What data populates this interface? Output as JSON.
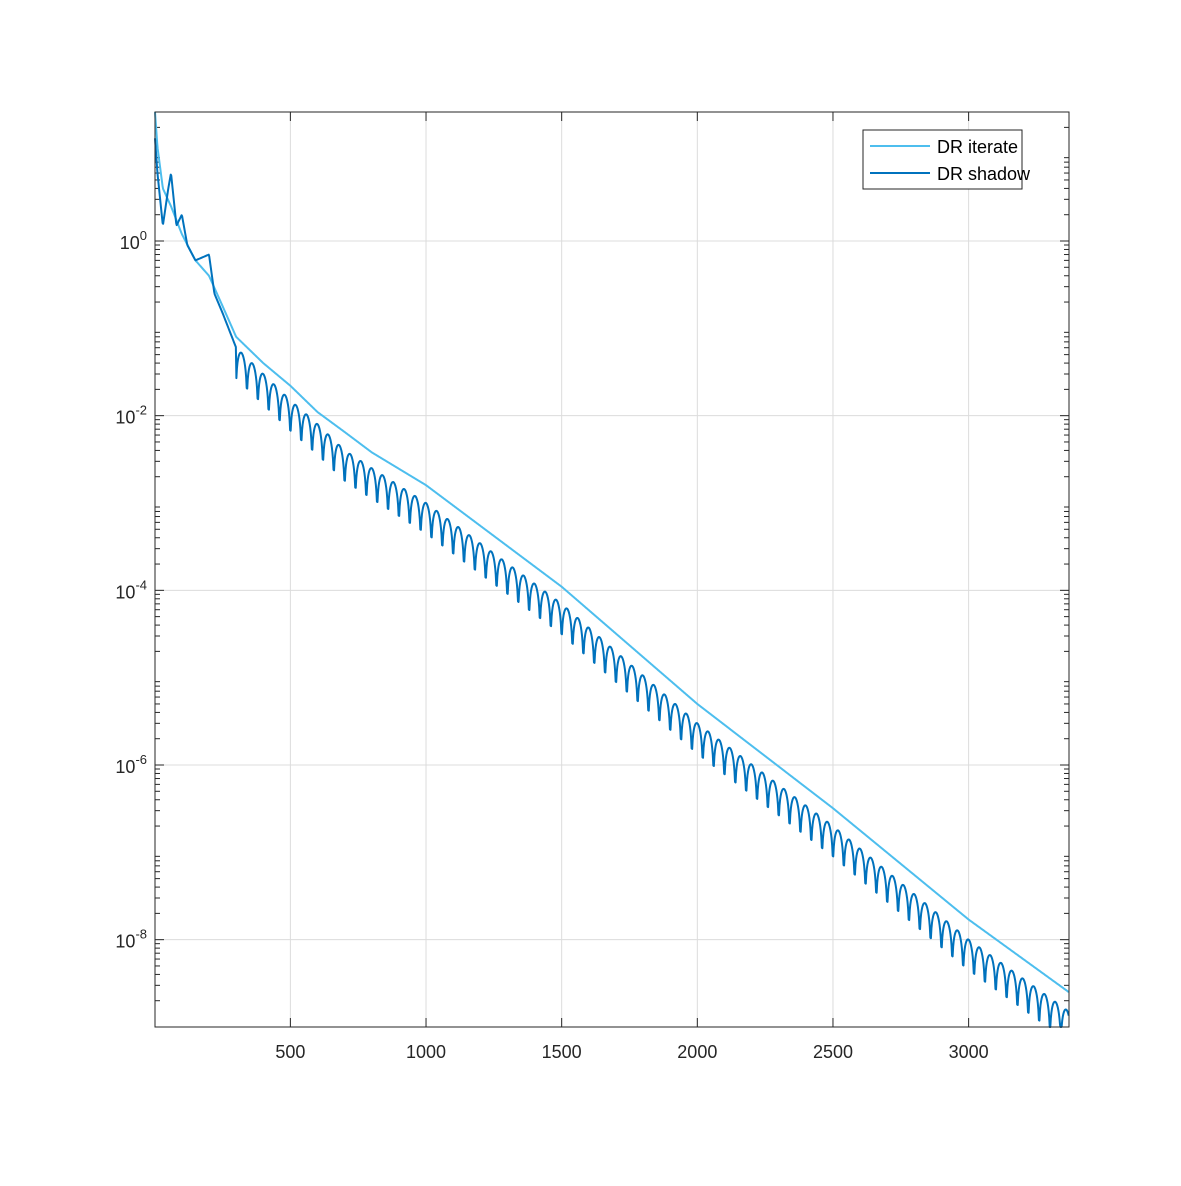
{
  "chart_data": {
    "type": "line",
    "title": "",
    "xlabel": "",
    "ylabel": "",
    "x_scale": "linear",
    "y_scale": "log",
    "xlim": [
      1,
      3370
    ],
    "ylim": [
      1e-09,
      30
    ],
    "grid": true,
    "legend_position": "top-right",
    "x_ticks": [
      {
        "value": 500,
        "label": "500"
      },
      {
        "value": 1000,
        "label": "1000"
      },
      {
        "value": 1500,
        "label": "1500"
      },
      {
        "value": 2000,
        "label": "2000"
      },
      {
        "value": 2500,
        "label": "2500"
      },
      {
        "value": 3000,
        "label": "3000"
      }
    ],
    "y_ticks": [
      {
        "value": 1,
        "base": "10",
        "exp": "0"
      },
      {
        "value": 0.01,
        "base": "10",
        "exp": "-2"
      },
      {
        "value": 0.0001,
        "base": "10",
        "exp": "-4"
      },
      {
        "value": 1e-06,
        "base": "10",
        "exp": "-6"
      },
      {
        "value": 1e-08,
        "base": "10",
        "exp": "-8"
      }
    ],
    "series": [
      {
        "name": "DR iterate",
        "color": "#4DBEEE",
        "x": [
          1,
          10,
          30,
          60,
          100,
          150,
          200,
          250,
          300,
          400,
          500,
          600,
          700,
          800,
          1000,
          1500,
          2000,
          2500,
          3000,
          3370
        ],
        "y": [
          30,
          12,
          4,
          2.5,
          1.2,
          0.6,
          0.4,
          0.18,
          0.08,
          0.04,
          0.022,
          0.011,
          0.0065,
          0.0038,
          0.0016,
          0.00011,
          5e-06,
          3.2e-07,
          1.7e-08,
          2.5e-09
        ]
      },
      {
        "name": "DR shadow",
        "color": "#0072BD",
        "x": [
          1,
          10,
          30,
          50,
          60,
          80,
          100,
          120,
          150,
          200,
          220,
          250,
          300,
          400,
          500,
          600,
          700,
          800,
          1000,
          1500,
          2000,
          2500,
          3000,
          3370
        ],
        "y": [
          15,
          6,
          1.5,
          4,
          6,
          1.5,
          2,
          0.9,
          0.6,
          0.7,
          0.25,
          0.15,
          0.06,
          0.03,
          0.015,
          0.008,
          0.004,
          0.0025,
          0.001,
          7e-05,
          3e-06,
          2e-07,
          1e-08,
          1.5e-09
        ],
        "oscillation": {
          "period": 40,
          "dip_factor": 0.3,
          "start_x": 300
        }
      }
    ]
  }
}
